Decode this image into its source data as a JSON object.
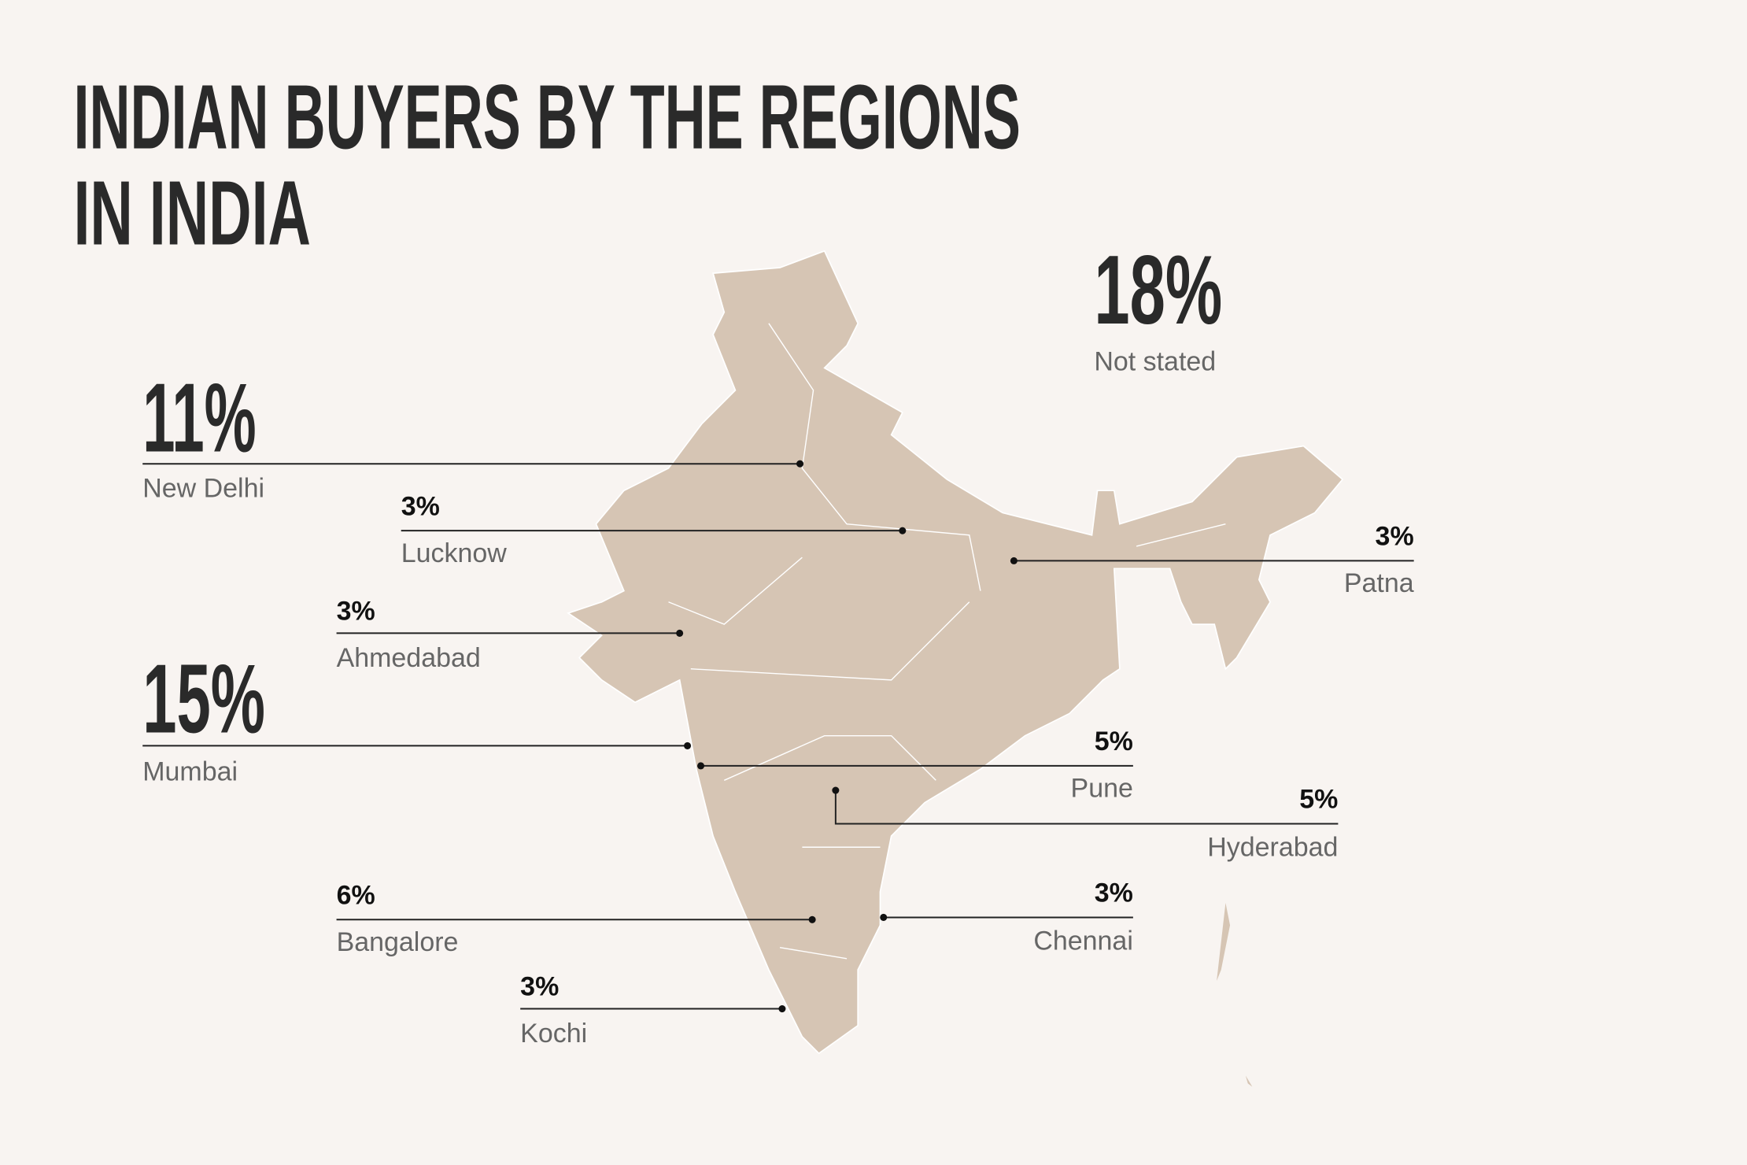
{
  "title": {
    "lines": [
      "INDIAN BUYERS BY THE REGIONS",
      "IN INDIA"
    ]
  },
  "callouts": [
    {
      "value": "18%",
      "label": "Not stated"
    },
    {
      "value": "11%",
      "label": "New Delhi"
    },
    {
      "value": "3%",
      "label": "Lucknow"
    },
    {
      "value": "3%",
      "label": "Patna"
    },
    {
      "value": "3%",
      "label": "Ahmedabad"
    },
    {
      "value": "15%",
      "label": "Mumbai"
    },
    {
      "value": "5%",
      "label": "Pune"
    },
    {
      "value": "5%",
      "label": "Hyderabad"
    },
    {
      "value": "6%",
      "label": "Bangalore"
    },
    {
      "value": "3%",
      "label": "Chennai"
    },
    {
      "value": "3%",
      "label": "Kochi"
    }
  ]
}
